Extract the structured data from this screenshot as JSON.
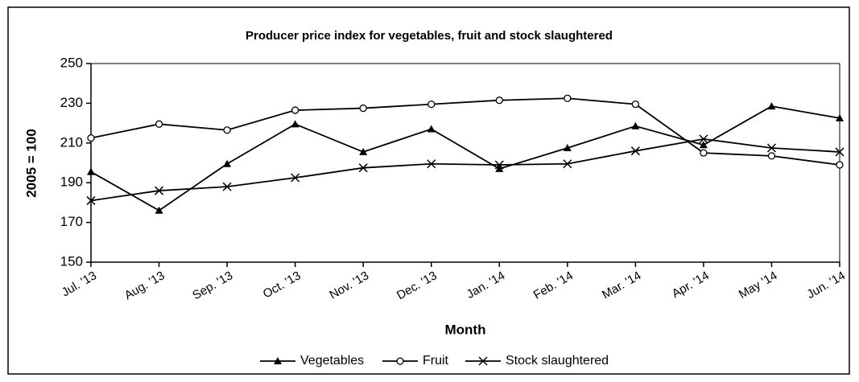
{
  "chart_data": {
    "type": "line",
    "title": "Producer price index for vegetables, fruit and stock slaughtered",
    "xlabel": "Month",
    "ylabel": "2005 = 100",
    "categories": [
      "Jul. '13",
      "Aug. '13",
      "Sep. '13",
      "Oct. '13",
      "Nov. '13",
      "Dec. '13",
      "Jan. '14",
      "Feb. '14",
      "Mar. '14",
      "Apr. '14",
      "May '14",
      "Jun. '14"
    ],
    "series": [
      {
        "name": "Vegetables",
        "color": "#000000",
        "marker": "triangle",
        "values": [
          195.5,
          176,
          199.5,
          219.5,
          205.5,
          217,
          197,
          207.5,
          218.5,
          209,
          228.5,
          222.5
        ]
      },
      {
        "name": "Fruit",
        "color": "#000000",
        "marker": "circle",
        "values": [
          212.5,
          219.5,
          216.5,
          226.5,
          227.5,
          229.5,
          231.5,
          232.5,
          229.5,
          205,
          203.5,
          199
        ]
      },
      {
        "name": "Stock slaughtered",
        "color": "#000000",
        "marker": "x",
        "values": [
          181,
          186,
          188,
          192.5,
          197.5,
          199.5,
          199,
          199.5,
          206,
          212,
          207.5,
          205.5
        ]
      }
    ],
    "ylim": [
      150,
      250
    ],
    "yticks": [
      150,
      170,
      190,
      210,
      230,
      250
    ],
    "grid": false,
    "legend": "bottom"
  }
}
